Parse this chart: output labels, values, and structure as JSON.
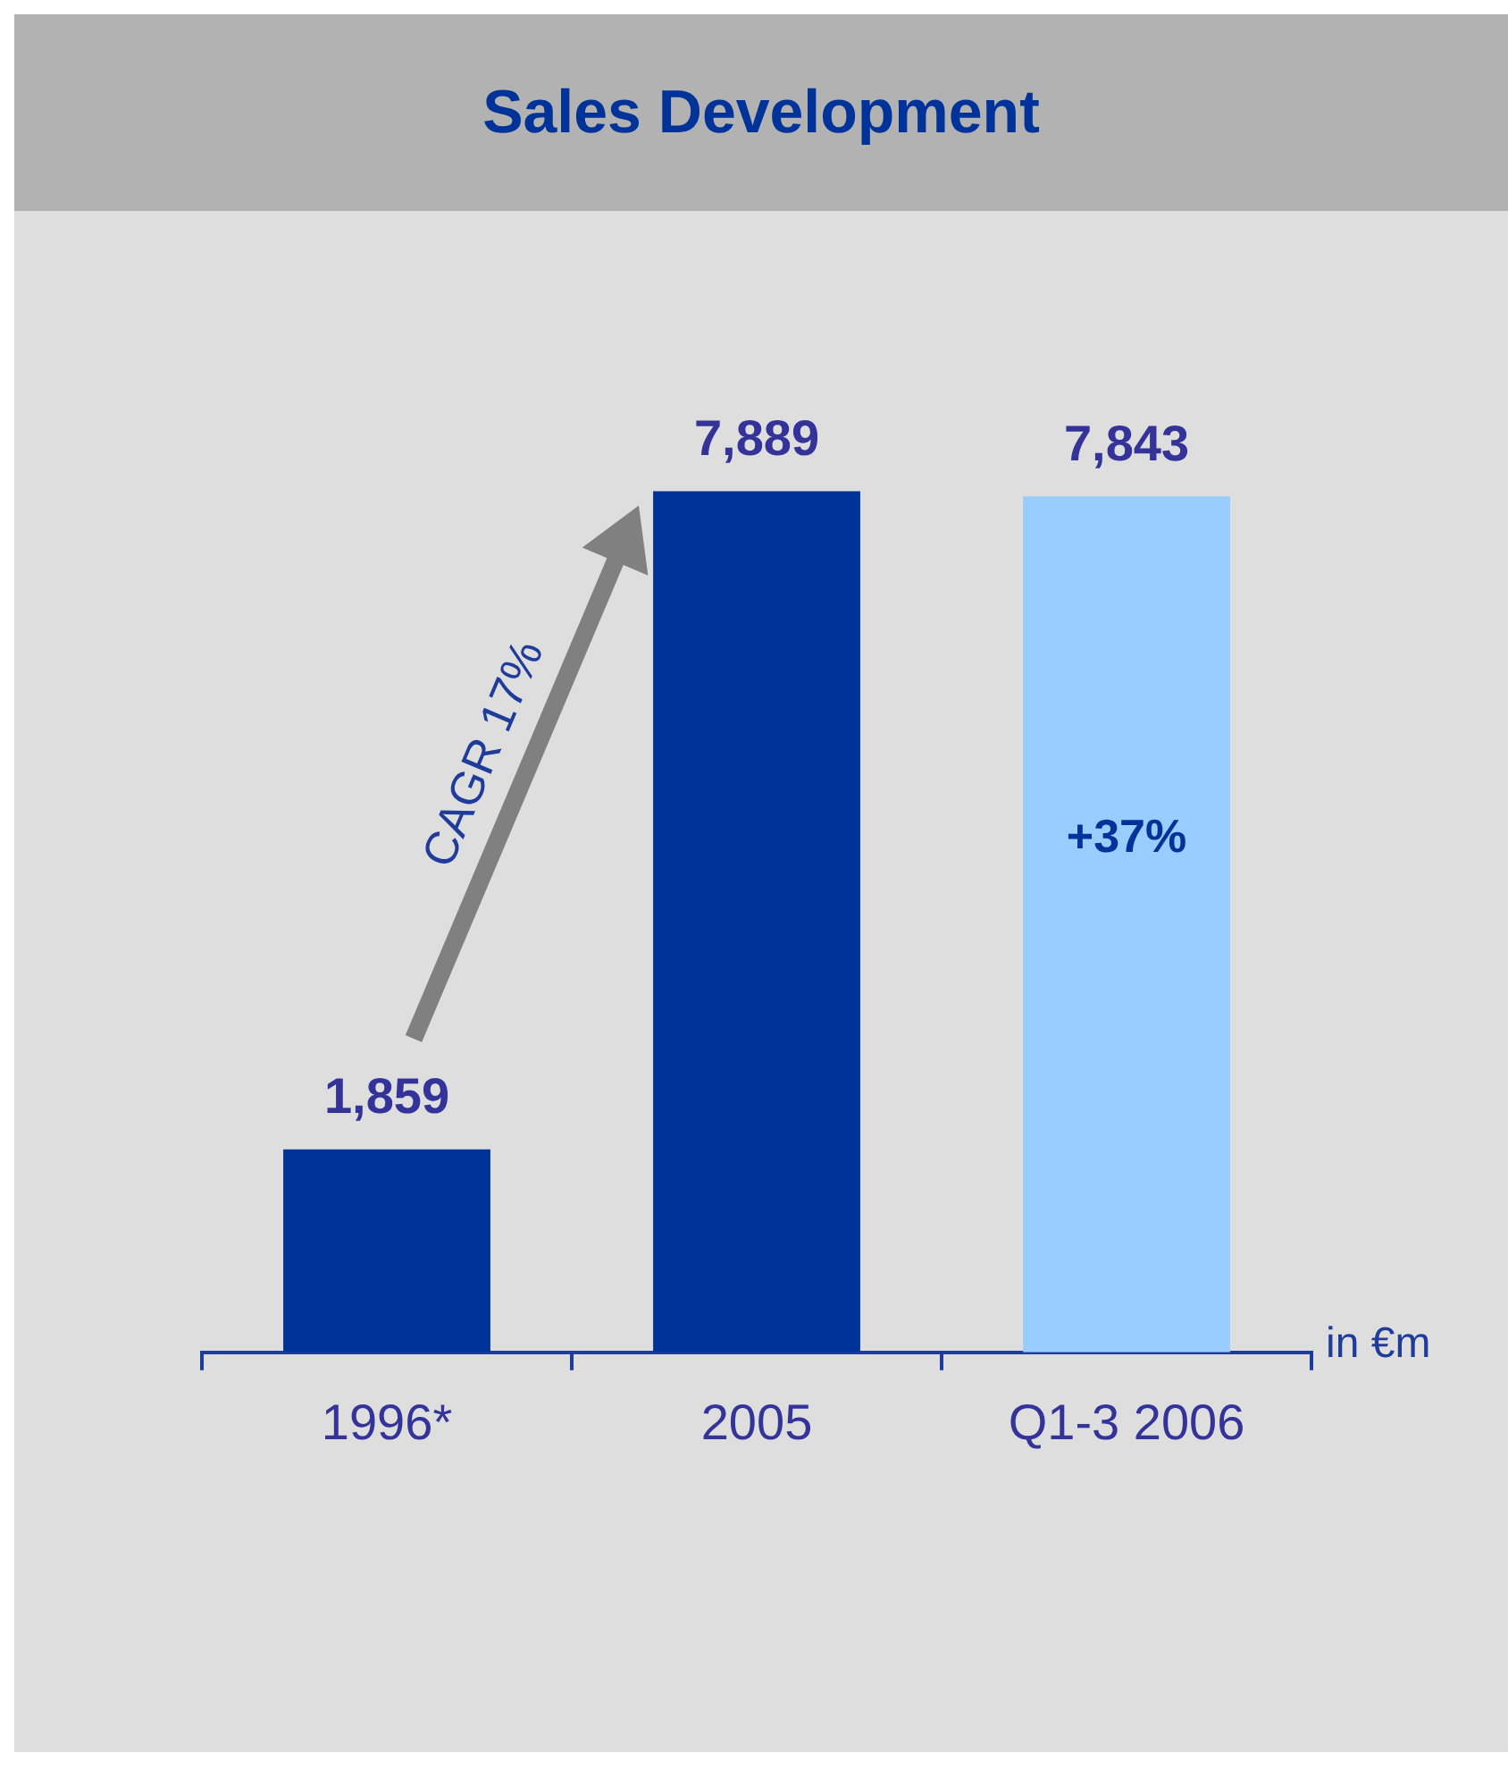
{
  "chart_data": {
    "type": "bar",
    "title": "Sales Development",
    "categories": [
      "1996*",
      "2005",
      "Q1-3 2006"
    ],
    "values": [
      1859,
      7889,
      7843
    ],
    "colors": [
      "#003399",
      "#003399",
      "#99ccff"
    ],
    "value_labels": [
      "1,859",
      "7,889",
      "7,843"
    ],
    "annotations": [
      "CAGR 17%",
      "in €m",
      "+37%"
    ],
    "grid": false,
    "legend": false
  }
}
